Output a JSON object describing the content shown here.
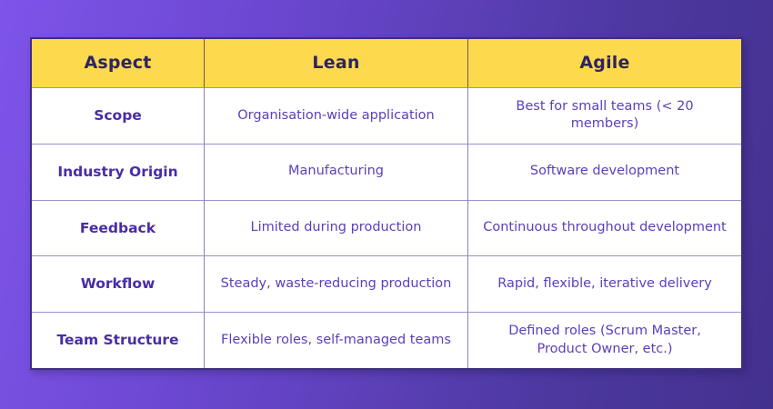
{
  "theme": {
    "background_gradient_start": "#7e54e9",
    "background_gradient_end": "#44318e",
    "header_background": "#fcd94d",
    "header_text_color": "#2e2461",
    "aspect_text_color": "#4a2ca6",
    "body_text_color": "#5b40ba",
    "grid_line_color": "#9c8fd0",
    "table_border_color": "#3c2f7d"
  },
  "table": {
    "columns": [
      "Aspect",
      "Lean",
      "Agile"
    ],
    "rows": [
      {
        "aspect": "Scope",
        "lean": "Organisation-wide application",
        "agile": "Best for small teams (< 20 members)"
      },
      {
        "aspect": "Industry Origin",
        "lean": "Manufacturing",
        "agile": "Software development"
      },
      {
        "aspect": "Feedback",
        "lean": "Limited during production",
        "agile": "Continuous throughout development"
      },
      {
        "aspect": "Workflow",
        "lean": "Steady, waste-reducing production",
        "agile": "Rapid, flexible, iterative delivery"
      },
      {
        "aspect": "Team Structure",
        "lean": "Flexible roles, self-managed teams",
        "agile": "Defined roles (Scrum Master, Product Owner, etc.)"
      }
    ]
  },
  "chart_data": {
    "type": "table",
    "title": "",
    "columns": [
      "Aspect",
      "Lean",
      "Agile"
    ],
    "rows": [
      [
        "Scope",
        "Organisation-wide application",
        "Best for small teams (< 20 members)"
      ],
      [
        "Industry Origin",
        "Manufacturing",
        "Software development"
      ],
      [
        "Feedback",
        "Limited during production",
        "Continuous throughout development"
      ],
      [
        "Workflow",
        "Steady, waste-reducing production",
        "Rapid, flexible, iterative delivery"
      ],
      [
        "Team Structure",
        "Flexible roles, self-managed teams",
        "Defined roles (Scrum Master, Product Owner, etc.)"
      ]
    ],
    "layout": {
      "header_row": true,
      "grid_on": true,
      "legend_position": "none"
    }
  }
}
